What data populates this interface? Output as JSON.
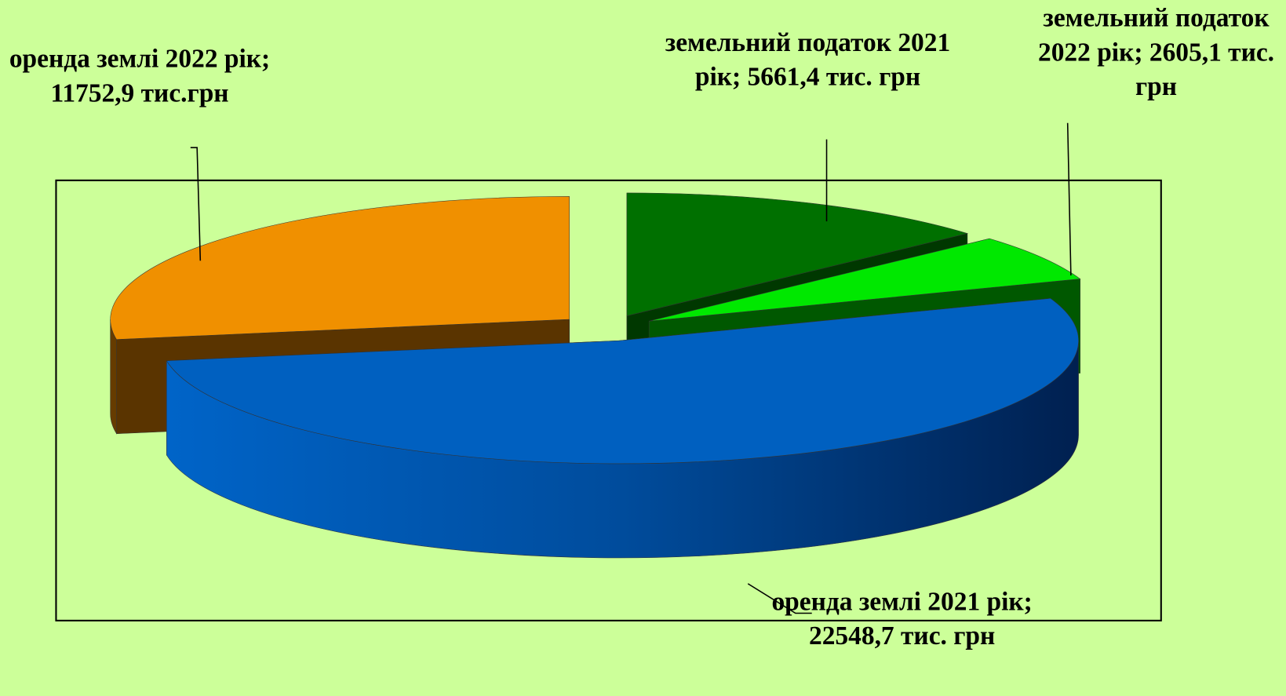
{
  "chart_data": {
    "type": "pie3d",
    "values": [
      5661.4,
      2605.1,
      22548.7,
      11752.9
    ],
    "value_labels": [
      "земельний податок 2021 рік; 5661,4 тис. грн",
      "земельний податок 2022 рік; 2605,1 тис. грн",
      "оренда землі 2021 рік; 22548,7 тис.  грн",
      "оренда землі 2022 рік; 11752,9 тис.грн"
    ],
    "colors": [
      "#007000",
      "#00E800",
      "#0060C0",
      "#F09000"
    ]
  }
}
